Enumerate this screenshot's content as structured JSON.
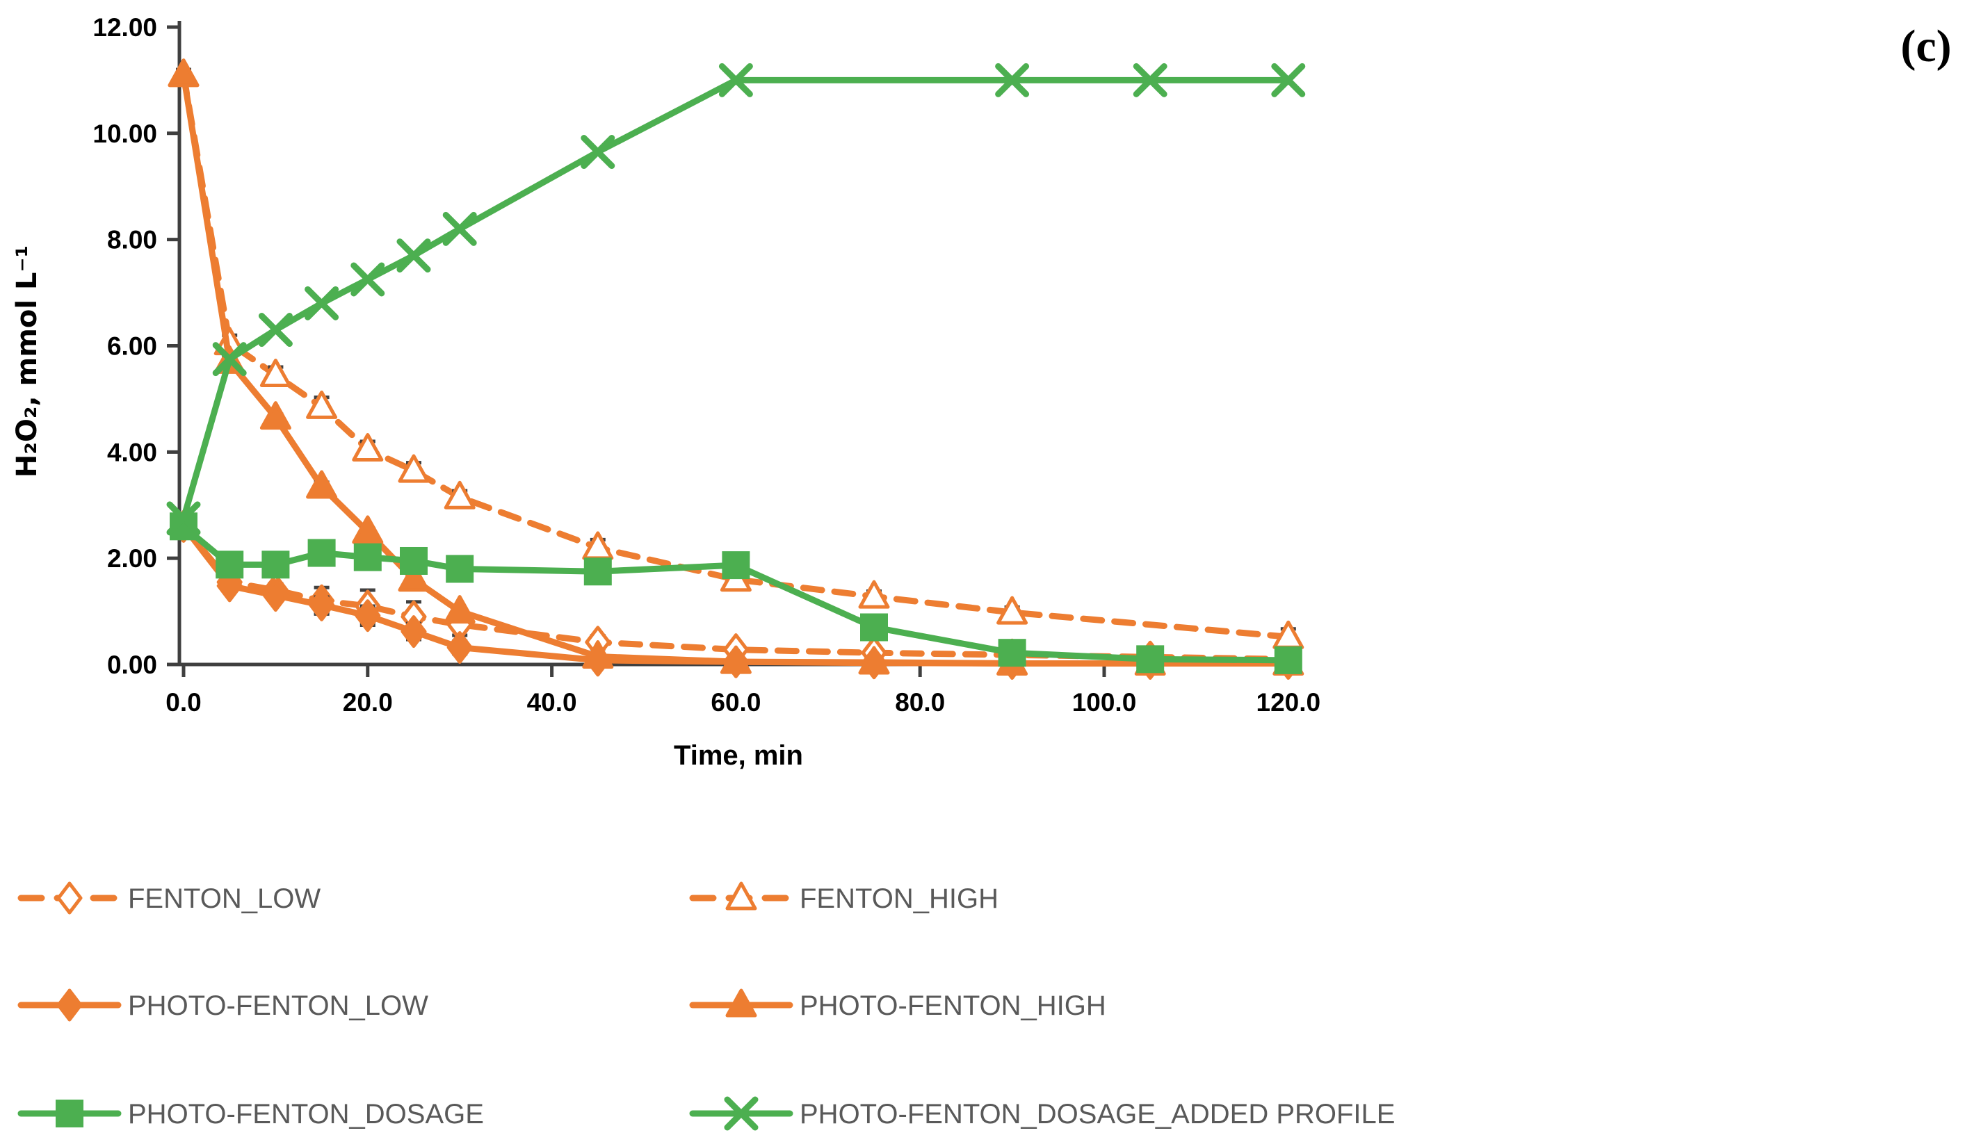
{
  "panel_label": "(c)",
  "colors": {
    "orange": "#ED7D31",
    "green": "#4CAF50",
    "axis_line": "#3F3F3F",
    "error_bar": "#404040",
    "tick_text": "#000000",
    "legend_text": "#595959",
    "marker_open_fill": "#FFFFFF"
  },
  "chart_data": {
    "type": "line",
    "title": "",
    "xlabel": "Time, min",
    "ylabel": "H₂O₂, mmol L⁻¹",
    "xlim": [
      0,
      120
    ],
    "ylim": [
      0,
      12
    ],
    "grid": false,
    "legend_position": "below",
    "x_ticks": [
      0,
      20,
      40,
      60,
      80,
      100,
      120
    ],
    "x_tick_labels": [
      "0.0",
      "20.0",
      "40.0",
      "60.0",
      "80.0",
      "100.0",
      "120.0"
    ],
    "y_ticks": [
      0,
      2,
      4,
      6,
      8,
      10,
      12
    ],
    "y_tick_labels": [
      "0.00",
      "2.00",
      "4.00",
      "6.00",
      "8.00",
      "10.00",
      "12.00"
    ],
    "series": [
      {
        "name": "FENTON_LOW",
        "color": "orange",
        "line": "dashed",
        "marker": "diamond-open",
        "x": [
          0,
          5,
          10,
          15,
          20,
          25,
          30,
          45,
          60,
          75,
          90,
          105,
          120
        ],
        "y": [
          2.6,
          1.55,
          1.4,
          1.2,
          1.1,
          0.9,
          0.75,
          0.42,
          0.28,
          0.22,
          0.18,
          0.14,
          0.1
        ],
        "err": [
          0.08,
          0.12,
          0.12,
          0.25,
          0.3,
          0.28,
          0.2,
          0.12,
          0.08,
          0.05,
          0.04,
          0.03,
          0.03
        ]
      },
      {
        "name": "FENTON_HIGH",
        "color": "orange",
        "line": "dashed",
        "marker": "triangle-open",
        "x": [
          0,
          5,
          10,
          15,
          20,
          25,
          30,
          45,
          60,
          75,
          90,
          120
        ],
        "y": [
          11.1,
          6.05,
          5.45,
          4.85,
          4.05,
          3.65,
          3.15,
          2.2,
          1.6,
          1.28,
          0.98,
          0.52
        ],
        "err": [
          0.1,
          0.15,
          0.15,
          0.18,
          0.15,
          0.15,
          0.12,
          0.15,
          0.12,
          0.1,
          0.1,
          0.15
        ]
      },
      {
        "name": "PHOTO-FENTON_LOW",
        "color": "orange",
        "line": "solid",
        "marker": "diamond-filled",
        "x": [
          0,
          5,
          10,
          15,
          20,
          25,
          30,
          45,
          60,
          75,
          90,
          105,
          120
        ],
        "y": [
          2.6,
          1.48,
          1.3,
          1.12,
          0.92,
          0.62,
          0.32,
          0.08,
          0.05,
          0.03,
          0.02,
          0.02,
          0.02
        ],
        "err": [
          0.08,
          0.1,
          0.1,
          0.15,
          0.18,
          0.15,
          0.12,
          0.06,
          0.04,
          0.03,
          0.02,
          0.02,
          0.02
        ]
      },
      {
        "name": "PHOTO-FENTON_HIGH",
        "color": "orange",
        "line": "solid",
        "marker": "triangle-filled",
        "x": [
          0,
          5,
          10,
          15,
          20,
          25,
          30,
          45,
          60,
          75,
          90,
          105,
          120
        ],
        "y": [
          11.1,
          5.7,
          4.65,
          3.35,
          2.5,
          1.6,
          1.0,
          0.15,
          0.05,
          0.04,
          0.02,
          0.02,
          0.02
        ],
        "err": [
          0.1,
          0.08,
          0.06,
          0.08,
          0.06,
          0.06,
          0.05,
          0.04,
          0.03,
          0.02,
          0.02,
          0.02,
          0.02
        ]
      },
      {
        "name": "PHOTO-FENTON_DOSAGE",
        "color": "green",
        "line": "solid",
        "marker": "square-filled",
        "x": [
          0,
          5,
          10,
          15,
          20,
          25,
          30,
          45,
          60,
          75,
          90,
          105,
          120
        ],
        "y": [
          2.6,
          1.88,
          1.88,
          2.1,
          2.02,
          1.95,
          1.8,
          1.75,
          1.87,
          0.7,
          0.22,
          0.1,
          0.08
        ],
        "err": [
          0.06,
          0.05,
          0.05,
          0.05,
          0.05,
          0.05,
          0.05,
          0.05,
          0.12,
          0.15,
          0.06,
          0.04,
          0.04
        ]
      },
      {
        "name": "PHOTO-FENTON_DOSAGE_ADDED PROFILE",
        "color": "green",
        "line": "solid",
        "marker": "x",
        "x": [
          0,
          5,
          10,
          15,
          20,
          25,
          30,
          45,
          60,
          90,
          105,
          120
        ],
        "y": [
          2.75,
          5.75,
          6.3,
          6.8,
          7.25,
          7.7,
          8.2,
          9.65,
          11.0,
          11.0,
          11.0,
          11.0
        ]
      }
    ]
  },
  "legend": {
    "items": [
      {
        "label": "FENTON_LOW",
        "series": 0,
        "col": 0,
        "row": 0
      },
      {
        "label": "FENTON_HIGH",
        "series": 1,
        "col": 1,
        "row": 0
      },
      {
        "label": "PHOTO-FENTON_LOW",
        "series": 2,
        "col": 0,
        "row": 1
      },
      {
        "label": "PHOTO-FENTON_HIGH",
        "series": 3,
        "col": 1,
        "row": 1
      },
      {
        "label": "PHOTO-FENTON_DOSAGE",
        "series": 4,
        "col": 0,
        "row": 2
      },
      {
        "label": "PHOTO-FENTON_DOSAGE_ADDED PROFILE",
        "series": 5,
        "col": 1,
        "row": 2
      }
    ]
  }
}
